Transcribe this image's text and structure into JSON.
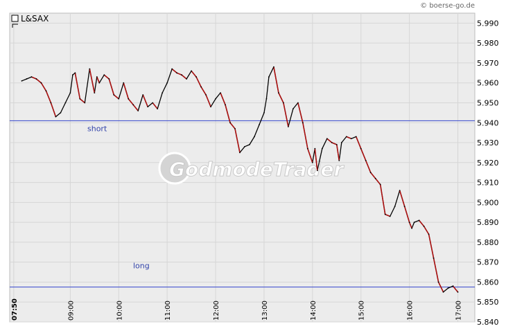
{
  "copyright": "© boerse-go.de",
  "watermark": "GodmodeTrader",
  "chart_data": {
    "type": "line",
    "title": "L&SAX",
    "ylim": [
      5840,
      5995
    ],
    "yticks": [
      5990,
      5980,
      5970,
      5960,
      5950,
      5940,
      5930,
      5920,
      5910,
      5900,
      5890,
      5880,
      5870,
      5860,
      5850,
      5840
    ],
    "ytick_labels": [
      "5.990",
      "5.980",
      "5.970",
      "5.960",
      "5.950",
      "5.940",
      "5.930",
      "5.920",
      "5.910",
      "5.900",
      "5.890",
      "5.880",
      "5.870",
      "5.860",
      "5.850",
      "5.840"
    ],
    "xlim": [
      7.75,
      17.35
    ],
    "xticks": [
      7.8333,
      9,
      10,
      11,
      12,
      13,
      14,
      15,
      16,
      17
    ],
    "xtick_labels": [
      "07:50",
      "09:00",
      "10:00",
      "11:00",
      "12:00",
      "13:00",
      "14:00",
      "15:00",
      "16:00",
      "17:00"
    ],
    "grid": true,
    "hlines": [
      {
        "label": "short",
        "value": 5941,
        "color": "#3344cc"
      },
      {
        "label": "long",
        "value": 5857.5,
        "color": "#3344cc"
      }
    ],
    "series": [
      {
        "x": [
          8.0,
          8.1,
          8.2,
          8.3,
          8.4,
          8.5,
          8.6,
          8.7,
          8.8,
          8.9,
          9.0,
          9.05,
          9.1,
          9.2,
          9.3,
          9.4,
          9.5,
          9.55,
          9.6,
          9.7,
          9.8,
          9.9,
          10.0,
          10.1,
          10.2,
          10.3,
          10.4,
          10.5,
          10.6,
          10.7,
          10.8,
          10.9,
          11.0,
          11.1,
          11.2,
          11.3,
          11.4,
          11.5,
          11.6,
          11.7,
          11.8,
          11.9,
          12.0,
          12.1,
          12.2,
          12.3,
          12.4,
          12.5,
          12.6,
          12.7,
          12.8,
          12.9,
          13.0,
          13.05,
          13.1,
          13.2,
          13.3,
          13.4,
          13.5,
          13.6,
          13.7,
          13.8,
          13.9,
          14.0,
          14.05,
          14.1,
          14.2,
          14.3,
          14.4,
          14.5,
          14.55,
          14.6,
          14.7,
          14.8,
          14.9,
          15.0,
          15.1,
          15.2,
          15.3,
          15.4,
          15.5,
          15.6,
          15.7,
          15.8,
          15.9,
          16.0,
          16.05,
          16.1,
          16.2,
          16.3,
          16.4,
          16.5,
          16.6,
          16.7,
          16.8,
          16.9,
          17.0
        ],
        "y": [
          5961,
          5962,
          5963,
          5962,
          5960,
          5956,
          5950,
          5943,
          5945,
          5950,
          5955,
          5964,
          5965,
          5952,
          5950,
          5967,
          5955,
          5963,
          5960,
          5964,
          5962,
          5954,
          5952,
          5960,
          5952,
          5949,
          5946,
          5954,
          5948,
          5950,
          5947,
          5955,
          5960,
          5967,
          5965,
          5964,
          5962,
          5966,
          5963,
          5958,
          5954,
          5948,
          5952,
          5955,
          5949,
          5940,
          5937,
          5925,
          5928,
          5929,
          5933,
          5939,
          5945,
          5952,
          5963,
          5968,
          5955,
          5950,
          5938,
          5947,
          5950,
          5940,
          5927,
          5920,
          5927,
          5916,
          5927,
          5932,
          5930,
          5929,
          5921,
          5930,
          5933,
          5932,
          5933,
          5927,
          5921,
          5915,
          5912,
          5909,
          5894,
          5893,
          5898,
          5906,
          5898,
          5890,
          5887,
          5890,
          5891,
          5888,
          5884,
          5872,
          5860,
          5855,
          5857,
          5858,
          5855
        ]
      }
    ]
  }
}
